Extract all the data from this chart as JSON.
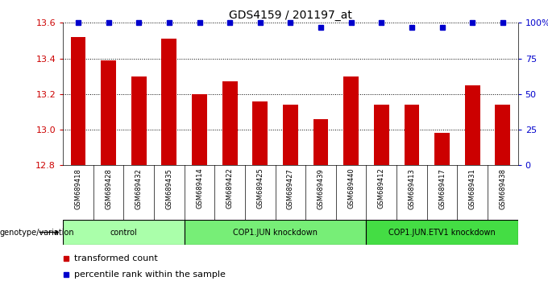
{
  "title": "GDS4159 / 201197_at",
  "samples": [
    "GSM689418",
    "GSM689428",
    "GSM689432",
    "GSM689435",
    "GSM689414",
    "GSM689422",
    "GSM689425",
    "GSM689427",
    "GSM689439",
    "GSM689440",
    "GSM689412",
    "GSM689413",
    "GSM689417",
    "GSM689431",
    "GSM689438"
  ],
  "bar_values": [
    13.52,
    13.39,
    13.3,
    13.51,
    13.2,
    13.27,
    13.16,
    13.14,
    13.06,
    13.3,
    13.14,
    13.14,
    12.98,
    13.25,
    13.14
  ],
  "percentile_values": [
    100,
    100,
    100,
    100,
    100,
    100,
    100,
    100,
    97,
    100,
    100,
    97,
    97,
    100,
    100
  ],
  "groups": [
    {
      "label": "control",
      "start": 0,
      "end": 4,
      "color": "#aaffaa"
    },
    {
      "label": "COP1.JUN knockdown",
      "start": 4,
      "end": 10,
      "color": "#77ee77"
    },
    {
      "label": "COP1.JUN.ETV1 knockdown",
      "start": 10,
      "end": 15,
      "color": "#44dd44"
    }
  ],
  "ylim": [
    12.8,
    13.6
  ],
  "yticks": [
    12.8,
    13.0,
    13.2,
    13.4,
    13.6
  ],
  "right_yticks": [
    0,
    25,
    50,
    75,
    100
  ],
  "right_ytick_labels": [
    "0",
    "25",
    "50",
    "75",
    "100%"
  ],
  "bar_color": "#cc0000",
  "percentile_color": "#0000cc",
  "plot_bg": "#ffffff",
  "xtick_bg": "#cccccc",
  "legend_red_label": "transformed count",
  "legend_blue_label": "percentile rank within the sample",
  "genotype_label": "genotype/variation"
}
